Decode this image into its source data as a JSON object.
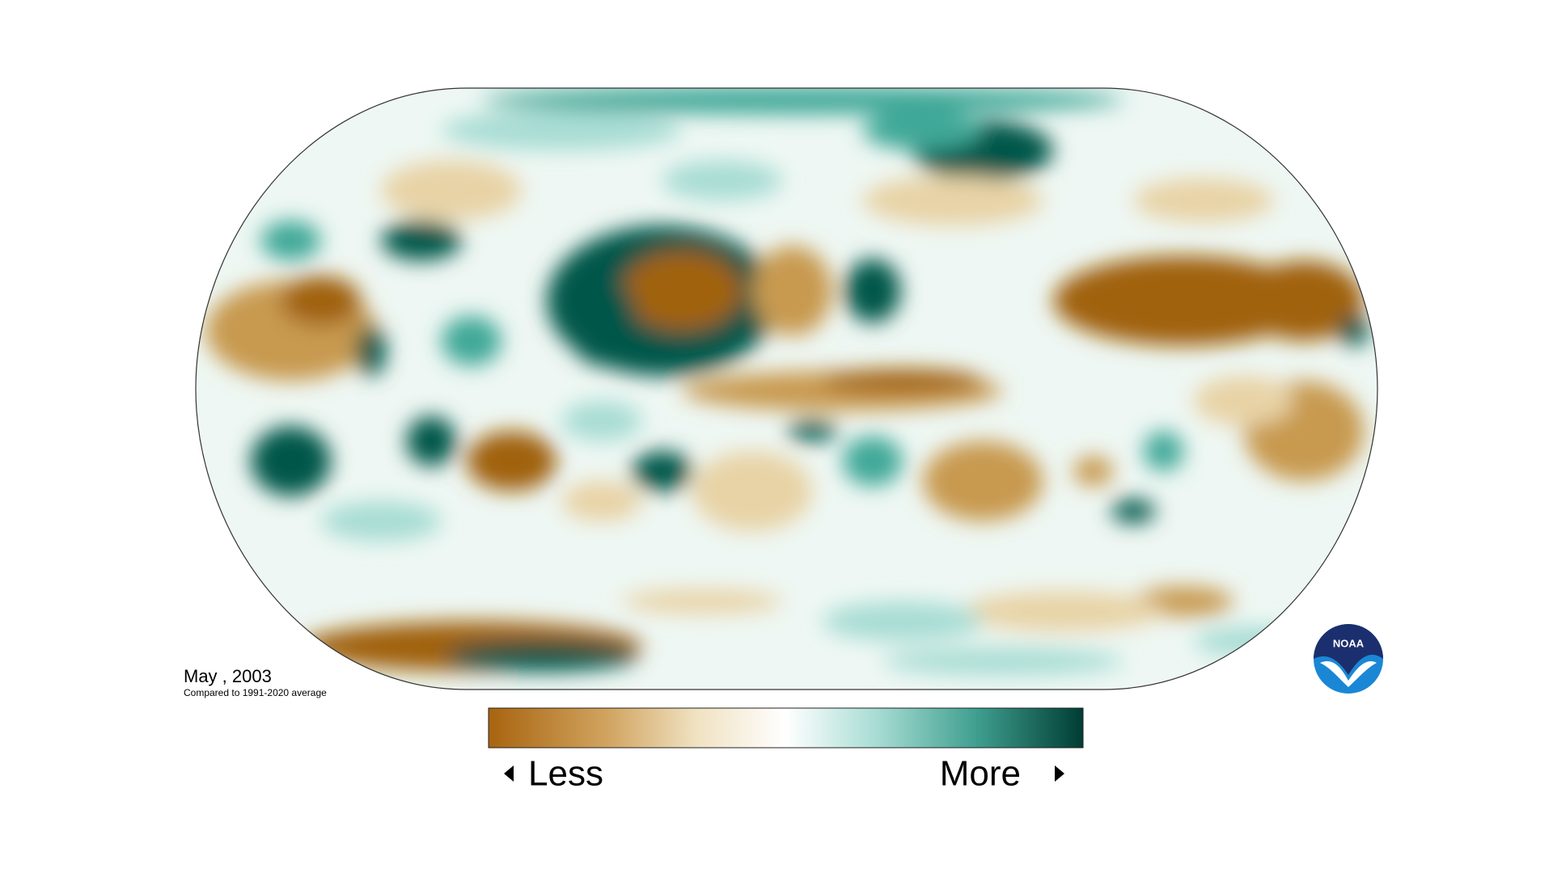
{
  "map": {
    "title": "May , 2003",
    "subtitle": "Compared to 1991-2020 average"
  },
  "legend": {
    "low_label": "Less",
    "high_label": "More"
  },
  "logo": {
    "text": "NOAA"
  }
}
